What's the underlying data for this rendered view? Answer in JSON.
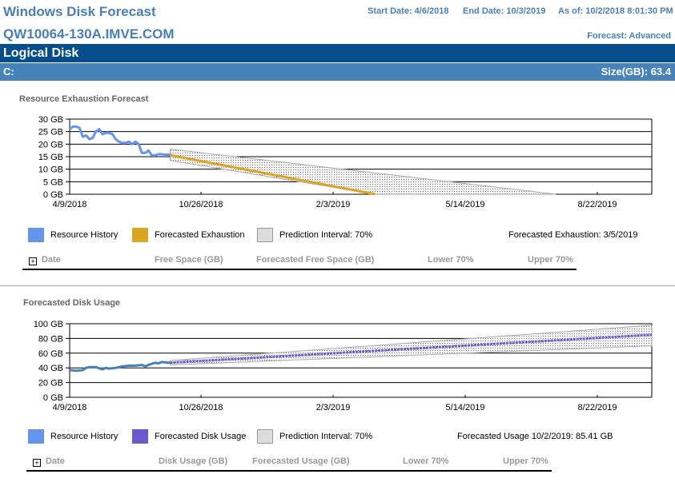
{
  "header": {
    "title": "Windows Disk Forecast",
    "host": "QW10064-130A.IMVE.COM",
    "start_date": "Start Date: 4/6/2018",
    "end_date": "End Date: 10/3/2019",
    "as_of": "As of: 10/2/2018 8:01:30 PM",
    "forecast_mode": "Forecast: Advanced"
  },
  "section": {
    "title": "Logical Disk",
    "drive": "C:",
    "size": "Size(GB): 63.4"
  },
  "colors": {
    "history": "#6495ed",
    "exhaustion": "#daa520",
    "usage": "#6a5acd",
    "history2": "#4682b4",
    "interval": "#dddddd"
  },
  "chart_data": [
    {
      "type": "line",
      "title": "Resource Exhaustion Forecast",
      "xlabel": "",
      "ylabel": "",
      "x_unit": "days since 4/9/2018",
      "xlim": [
        0,
        886
      ],
      "ylim": [
        0,
        30
      ],
      "yticks": [
        "0 GB",
        "5 GB",
        "10 GB",
        "15 GB",
        "20 GB",
        "25 GB",
        "30 GB"
      ],
      "ytick_values": [
        0,
        5,
        10,
        15,
        20,
        25,
        30
      ],
      "xticks": [
        "4/9/2018",
        "10/26/2018",
        "2/3/2019",
        "5/14/2019",
        "8/22/2019"
      ],
      "xtick_values": [
        0,
        200,
        300,
        400,
        500
      ],
      "series": [
        {
          "name": "Resource History",
          "x": [
            0,
            5,
            10,
            15,
            20,
            25,
            30,
            35,
            40,
            45,
            50,
            55,
            60,
            65,
            70,
            75,
            80,
            85,
            90,
            95,
            100,
            105,
            110,
            115,
            120,
            125,
            130,
            135,
            140,
            145,
            150,
            153
          ],
          "values": [
            26,
            27,
            27,
            26.5,
            23,
            23.5,
            22,
            22.5,
            25,
            26,
            24,
            24.5,
            24.5,
            24,
            22,
            21,
            20.5,
            20.5,
            21,
            20,
            21,
            20,
            16.5,
            16.5,
            17.5,
            15.5,
            15.5,
            16,
            16,
            15.8,
            15.8,
            15.6
          ]
        },
        {
          "name": "Forecasted Exhaustion",
          "x": [
            153,
            465
          ],
          "values": [
            15.6,
            0
          ]
        },
        {
          "name": "Prediction Interval: 70%",
          "x": [
            153,
            465,
            740
          ],
          "upper": [
            18,
            8.5,
            0
          ],
          "lower": [
            13.5,
            0,
            0
          ]
        }
      ],
      "legend": [
        "Resource History",
        "Forecasted Exhaustion",
        "Prediction Interval: 70%"
      ],
      "annotation": "Forecasted Exhaustion: 3/5/2019"
    },
    {
      "type": "line",
      "title": "Forecasted Disk Usage",
      "xlim": [
        0,
        886
      ],
      "ylim": [
        0,
        100
      ],
      "yticks": [
        "0 GB",
        "20 GB",
        "40 GB",
        "60 GB",
        "80 GB",
        "100 GB"
      ],
      "ytick_values": [
        0,
        20,
        40,
        60,
        80,
        100
      ],
      "xticks": [
        "4/9/2018",
        "10/26/2018",
        "2/3/2019",
        "5/14/2019",
        "8/22/2019"
      ],
      "xtick_values": [
        0,
        200,
        300,
        400,
        500
      ],
      "series": [
        {
          "name": "Resource History",
          "x": [
            0,
            10,
            20,
            25,
            30,
            40,
            50,
            55,
            60,
            70,
            80,
            90,
            100,
            110,
            115,
            120,
            130,
            135,
            140,
            150,
            153
          ],
          "values": [
            37,
            36,
            37,
            40,
            41,
            41,
            38,
            40,
            39,
            40,
            42,
            43,
            43,
            44,
            42,
            44,
            47,
            46,
            48,
            47,
            47
          ]
        },
        {
          "name": "Forecasted Disk Usage",
          "x": [
            153,
            886
          ],
          "values": [
            47,
            85
          ]
        },
        {
          "name": "Prediction Interval: 70%",
          "x": [
            153,
            886
          ],
          "upper": [
            50,
            98
          ],
          "lower": [
            44,
            70
          ]
        }
      ],
      "legend": [
        "Resource History",
        "Forecasted Disk Usage",
        "Prediction Interval: 70%"
      ],
      "annotation": "Forecasted Usage 10/2/2019: 85.41 GB"
    }
  ],
  "table1": {
    "headers": [
      "Date",
      "Free Space (GB)",
      "Forecasted Free Space (GB)",
      "Lower 70%",
      "Upper 70%"
    ]
  },
  "table2": {
    "headers": [
      "Date",
      "Disk Usage (GB)",
      "Forecasted Usage (GB)",
      "Lower 70%",
      "Upper 70%"
    ]
  },
  "expand_symbol": "+"
}
